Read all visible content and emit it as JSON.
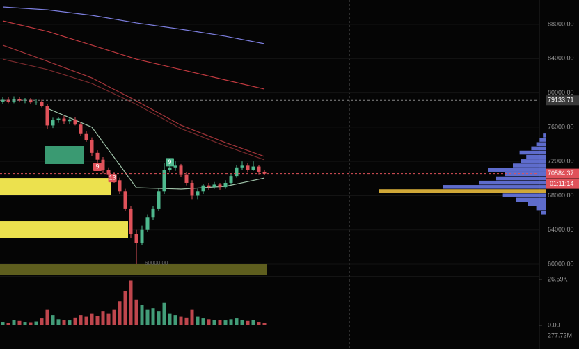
{
  "chart_data": {
    "type": "candlestick",
    "open": [
      79000,
      79200,
      79000,
      79300,
      79100,
      79200,
      78900,
      79000,
      78500,
      76200,
      76800,
      77000,
      76700,
      76900,
      76300,
      75200,
      74500,
      73000,
      72200,
      71000,
      70500,
      69800,
      68500,
      66500,
      63500,
      62500,
      64000,
      65500,
      66500,
      68500,
      71000,
      71300,
      71500,
      70500,
      69500,
      68000,
      68500,
      69200,
      69000,
      69300,
      69000,
      69500,
      70300,
      71300,
      71500,
      71000,
      71400,
      70800
    ],
    "high": [
      79500,
      79500,
      79600,
      79500,
      79400,
      79400,
      79300,
      79200,
      78700,
      77100,
      77200,
      77300,
      77100,
      77200,
      76600,
      75500,
      74800,
      73300,
      72500,
      71300,
      70800,
      70100,
      68800,
      66800,
      64000,
      64500,
      65800,
      66800,
      68800,
      71800,
      71800,
      72000,
      71700,
      70800,
      69800,
      68800,
      69400,
      69500,
      69600,
      69500,
      69800,
      70600,
      71600,
      72000,
      71800,
      72000,
      71600,
      71000
    ],
    "low": [
      78700,
      78800,
      78800,
      78900,
      78800,
      78700,
      78600,
      78300,
      75800,
      75900,
      76500,
      76400,
      76400,
      76200,
      75000,
      74300,
      72600,
      71800,
      70600,
      70200,
      69500,
      68200,
      66200,
      63000,
      60000,
      62200,
      63800,
      65200,
      66200,
      68200,
      70700,
      70900,
      70200,
      69200,
      67600,
      67600,
      68200,
      68700,
      68800,
      68700,
      68800,
      69300,
      70100,
      71000,
      70700,
      70900,
      70500,
      70400
    ],
    "close": [
      79200,
      79000,
      79300,
      79100,
      79200,
      78900,
      79000,
      78500,
      76200,
      76800,
      77000,
      76700,
      76900,
      76300,
      75200,
      74500,
      73000,
      72200,
      71000,
      70500,
      69800,
      68500,
      66500,
      63500,
      62500,
      64000,
      65500,
      66500,
      68500,
      71000,
      71300,
      71500,
      70500,
      69500,
      68000,
      68500,
      69200,
      69000,
      69300,
      69000,
      69500,
      70300,
      71300,
      71500,
      71000,
      71400,
      70800,
      70584.37
    ],
    "up_color": "#4fb98e",
    "down_color": "#e0525a",
    "ylim": [
      58540,
      90845
    ],
    "yticks": [
      {
        "value": 60000,
        "label": "60000.00"
      },
      {
        "value": 64000,
        "label": "64000.00"
      },
      {
        "value": 68000,
        "label": "68000.00"
      },
      {
        "value": 72000,
        "label": "72000.00"
      },
      {
        "value": 76000,
        "label": "76000.00"
      },
      {
        "value": 80000,
        "label": "80000.00"
      },
      {
        "value": 84000,
        "label": "84000.00"
      },
      {
        "value": 88000,
        "label": "88000.00"
      }
    ],
    "grid": true,
    "volume": [
      2000,
      1500,
      3000,
      2500,
      2000,
      1800,
      2200,
      4000,
      9000,
      6000,
      3500,
      3000,
      2800,
      4500,
      6000,
      5000,
      7000,
      5500,
      8000,
      7000,
      9000,
      14000,
      20000,
      26000,
      15000,
      12000,
      9000,
      10000,
      8000,
      13000,
      7000,
      6000,
      5000,
      4500,
      9000,
      5000,
      4000,
      3500,
      3000,
      3200,
      2800,
      3500,
      4000,
      3000,
      2500,
      3000,
      2000,
      1500
    ],
    "volume_ylim": [
      0,
      26590
    ],
    "volume_ticks": [
      {
        "value": 0,
        "label": "0.00"
      },
      {
        "value": 26590,
        "label": "26.59K"
      }
    ],
    "volume_footer": "277.72M",
    "moving_averages": {
      "index": [
        0,
        8,
        16,
        24,
        32,
        40,
        47
      ],
      "series": [
        {
          "color": "#7d7fe0",
          "values": [
            90033,
            89700,
            89060,
            88170,
            87436,
            86620,
            85730
          ]
        },
        {
          "color": "#c0393f",
          "values": [
            88410,
            87190,
            85570,
            83940,
            82730,
            81510,
            80450
          ]
        },
        {
          "color": "#a5353a",
          "values": [
            85570,
            83700,
            81750,
            79070,
            76230,
            74200,
            72580
          ]
        },
        {
          "color": "#7a2a2d",
          "values": [
            83940,
            82730,
            81100,
            78670,
            75830,
            73800,
            72180
          ]
        },
        {
          "color": "#9fc2a8",
          "values": [
            null,
            78200,
            76000,
            68930,
            68770,
            69090,
            70060
          ]
        }
      ]
    },
    "price_lines": [
      {
        "value": 79133.71,
        "label": "79133.71",
        "color": "#8a8a8a",
        "box": "#3a3a3a"
      },
      {
        "value": 70584.37,
        "label": "70584.37",
        "color": "#e0525a",
        "box": "#e0525a"
      }
    ],
    "countdown": "01:11:14",
    "zones": [
      {
        "from": 68110,
        "to": 70060,
        "start": 0,
        "end": 20,
        "color": "#ece14e"
      },
      {
        "from": 63080,
        "to": 65030,
        "start": 0,
        "end": 23,
        "color": "#ece14e"
      },
      {
        "from": 58780,
        "to": 60000,
        "start": 0,
        "end": 48,
        "color": "#5e5e1e"
      },
      {
        "from": 71690,
        "to": 73800,
        "start": 8,
        "end": 15,
        "color": "#3a9a72"
      }
    ],
    "markers": [
      {
        "label": "9",
        "index": 17,
        "price": 71360,
        "color": "#e0525a"
      },
      {
        "label": "13",
        "index": 19.7,
        "price": 70060,
        "color": "#e0525a"
      },
      {
        "label": "9",
        "index": 30,
        "price": 71900,
        "color": "#4fb98e"
      }
    ],
    "annotation": {
      "label": "60000.00",
      "index": 25.5,
      "price": 60000
    },
    "volume_profile": {
      "prices": [
        66000,
        66500,
        67000,
        67500,
        68000,
        68500,
        69000,
        69500,
        70000,
        70500,
        71000,
        71500,
        72000,
        72500,
        73000,
        73500,
        74000,
        74500,
        75000
      ],
      "volumes": [
        30,
        60,
        110,
        180,
        260,
        1000,
        620,
        400,
        300,
        250,
        350,
        200,
        150,
        120,
        160,
        90,
        60,
        40,
        20
      ],
      "color": "#6f7ff0",
      "poc_color": "#f5c542"
    }
  }
}
